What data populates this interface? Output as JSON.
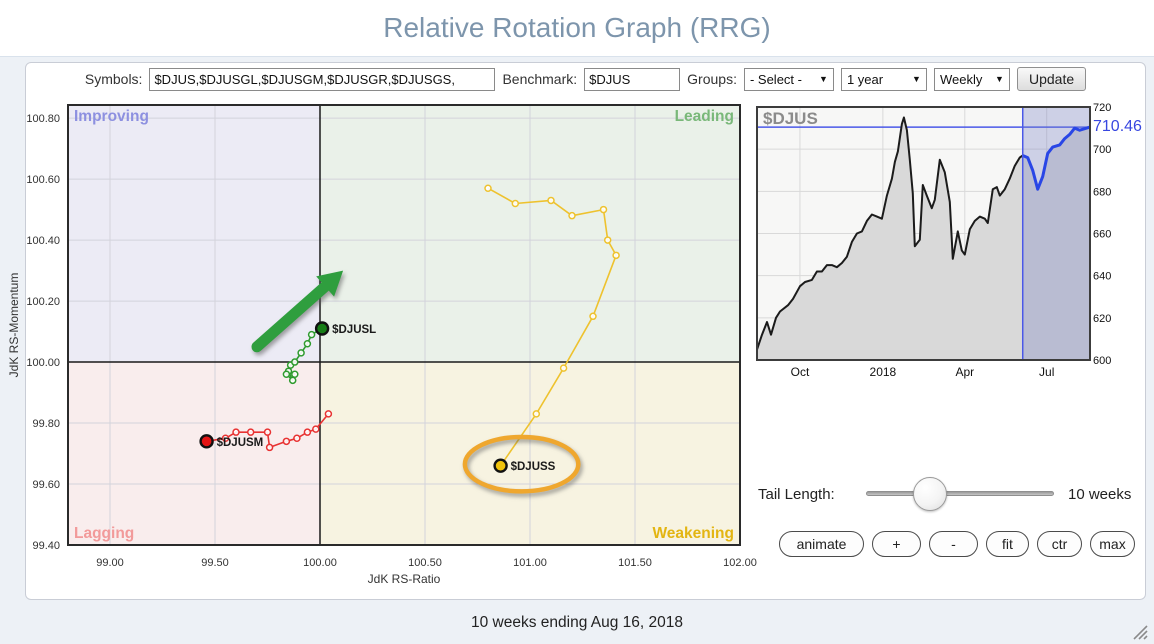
{
  "header": {
    "title": "Relative Rotation Graph (RRG)"
  },
  "toolbar": {
    "symbols_label": "Symbols:",
    "symbols_value": "$DJUS,$DJUSGL,$DJUSGM,$DJUSGR,$DJUSGS,",
    "benchmark_label": "Benchmark:",
    "benchmark_value": "$DJUS",
    "groups_label": "Groups:",
    "groups_value": "- Select -",
    "period_value": "1 year",
    "frequency_value": "Weekly",
    "update_label": "Update",
    "caret_glyph": "▼"
  },
  "controls": {
    "tail_length_label": "Tail Length:",
    "tail_length_value": "10 weeks",
    "buttons": [
      "animate",
      "+",
      "-",
      "fit",
      "ctr",
      "max"
    ]
  },
  "footer": {
    "caption": "10 weeks ending Aug 16, 2018"
  },
  "chart_data": [
    {
      "type": "scatter",
      "title": "RRG rotation chart",
      "xlabel": "JdK RS-Ratio",
      "ylabel": "JdK RS-Momentum",
      "xlim": [
        98.8,
        102.0
      ],
      "ylim": [
        99.4,
        100.843
      ],
      "center": [
        100.0,
        100.0
      ],
      "x_ticks": {
        "values": [
          99.0,
          99.5,
          100.0,
          100.5,
          101.0,
          101.5,
          102.0
        ],
        "labels": [
          "99.00",
          "99.50",
          "100.00",
          "100.50",
          "101.00",
          "101.50",
          "102.00"
        ]
      },
      "y_ticks": {
        "values": [
          100.8,
          100.6,
          100.4,
          100.2,
          100.0,
          99.8,
          99.6,
          99.4
        ],
        "labels": [
          "100.80",
          "100.60",
          "100.40",
          "100.20",
          "100.00",
          "99.80",
          "99.60",
          "99.40"
        ]
      },
      "quadrants": [
        {
          "name": "Improving",
          "pos": "tl",
          "bg": "#ecebf5",
          "label_color": "#8d90e0"
        },
        {
          "name": "Leading",
          "pos": "tr",
          "bg": "#eaf1e9",
          "label_color": "#79b879"
        },
        {
          "name": "Lagging",
          "pos": "bl",
          "bg": "#f9eded",
          "label_color": "#f29a9a"
        },
        {
          "name": "Weakening",
          "pos": "br",
          "bg": "#f7f3e1",
          "label_color": "#e3b512"
        }
      ],
      "series": [
        {
          "name": "$DJUSL",
          "line_color": "#2e9b2e",
          "marker_color": "#167d16",
          "points": [
            [
              99.88,
              99.96
            ],
            [
              99.85,
              99.97
            ],
            [
              99.87,
              99.94
            ],
            [
              99.84,
              99.96
            ],
            [
              99.86,
              99.99
            ],
            [
              99.88,
              100.0
            ],
            [
              99.91,
              100.03
            ],
            [
              99.94,
              100.06
            ],
            [
              99.96,
              100.09
            ],
            [
              100.01,
              100.11
            ]
          ]
        },
        {
          "name": "$DJUSM",
          "line_color": "#e83232",
          "marker_color": "#e41414",
          "points": [
            [
              100.04,
              99.83
            ],
            [
              99.98,
              99.78
            ],
            [
              99.94,
              99.77
            ],
            [
              99.89,
              99.75
            ],
            [
              99.84,
              99.74
            ],
            [
              99.76,
              99.72
            ],
            [
              99.75,
              99.77
            ],
            [
              99.67,
              99.77
            ],
            [
              99.6,
              99.77
            ],
            [
              99.55,
              99.75
            ],
            [
              99.46,
              99.74
            ]
          ]
        },
        {
          "name": "$DJUSS",
          "line_color": "#eec22e",
          "marker_color": "#efc20c",
          "points": [
            [
              100.8,
              100.57
            ],
            [
              100.93,
              100.52
            ],
            [
              101.1,
              100.53
            ],
            [
              101.2,
              100.48
            ],
            [
              101.35,
              100.5
            ],
            [
              101.37,
              100.4
            ],
            [
              101.41,
              100.35
            ],
            [
              101.3,
              100.15
            ],
            [
              101.16,
              99.98
            ],
            [
              101.03,
              99.83
            ],
            [
              100.86,
              99.66
            ]
          ]
        }
      ],
      "annotations": {
        "arrow": {
          "from": [
            99.7,
            100.05
          ],
          "to": [
            100.11,
            100.3
          ],
          "color": "#2f9e3e"
        },
        "ellipse": {
          "center": [
            100.96,
            99.665
          ],
          "rx": 0.27,
          "ry": 0.089,
          "color": "#efa72e"
        }
      }
    },
    {
      "type": "area",
      "title": "$DJUS",
      "last_value": 710.46,
      "last_value_label": "710.46",
      "ylim": [
        600,
        720
      ],
      "y_ticks": {
        "values": [
          720,
          700,
          680,
          660,
          640,
          620,
          600
        ],
        "labels": [
          "720",
          "700",
          "680",
          "660",
          "640",
          "620",
          "600"
        ]
      },
      "x_ticks": [
        {
          "f": 0.129,
          "label": "Oct"
        },
        {
          "f": 0.378,
          "label": "2018"
        },
        {
          "f": 0.624,
          "label": "Apr"
        },
        {
          "f": 0.87,
          "label": "Jul"
        }
      ],
      "highlight_start": 0.798,
      "points": [
        [
          0.0,
          605
        ],
        [
          0.015,
          612
        ],
        [
          0.03,
          618
        ],
        [
          0.042,
          612
        ],
        [
          0.057,
          620
        ],
        [
          0.069,
          623
        ],
        [
          0.093,
          626
        ],
        [
          0.108,
          629
        ],
        [
          0.129,
          635
        ],
        [
          0.144,
          637
        ],
        [
          0.165,
          638
        ],
        [
          0.18,
          642
        ],
        [
          0.195,
          642
        ],
        [
          0.21,
          645
        ],
        [
          0.225,
          645
        ],
        [
          0.24,
          644
        ],
        [
          0.255,
          646
        ],
        [
          0.27,
          649
        ],
        [
          0.285,
          656
        ],
        [
          0.3,
          660
        ],
        [
          0.315,
          661
        ],
        [
          0.33,
          666
        ],
        [
          0.345,
          669
        ],
        [
          0.36,
          668
        ],
        [
          0.375,
          667
        ],
        [
          0.39,
          678
        ],
        [
          0.405,
          686
        ],
        [
          0.414,
          694
        ],
        [
          0.423,
          699
        ],
        [
          0.435,
          712
        ],
        [
          0.441,
          715
        ],
        [
          0.45,
          709
        ],
        [
          0.459,
          695
        ],
        [
          0.468,
          679
        ],
        [
          0.474,
          654
        ],
        [
          0.489,
          657
        ],
        [
          0.498,
          683
        ],
        [
          0.51,
          678
        ],
        [
          0.525,
          672
        ],
        [
          0.534,
          676
        ],
        [
          0.549,
          695
        ],
        [
          0.564,
          689
        ],
        [
          0.579,
          675
        ],
        [
          0.588,
          648
        ],
        [
          0.603,
          661
        ],
        [
          0.615,
          652
        ],
        [
          0.624,
          650
        ],
        [
          0.639,
          662
        ],
        [
          0.654,
          666
        ],
        [
          0.669,
          668
        ],
        [
          0.684,
          667
        ],
        [
          0.693,
          665
        ],
        [
          0.708,
          681
        ],
        [
          0.72,
          682
        ],
        [
          0.729,
          678
        ],
        [
          0.744,
          681
        ],
        [
          0.759,
          686
        ],
        [
          0.774,
          692
        ],
        [
          0.789,
          696
        ],
        [
          0.798,
          697
        ],
        [
          0.813,
          696
        ],
        [
          0.828,
          690
        ],
        [
          0.843,
          681
        ],
        [
          0.858,
          687
        ],
        [
          0.873,
          698
        ],
        [
          0.888,
          701
        ],
        [
          0.909,
          702
        ],
        [
          0.924,
          705
        ],
        [
          0.939,
          707
        ],
        [
          0.954,
          710
        ],
        [
          0.969,
          709
        ],
        [
          1.0,
          710.46
        ]
      ]
    }
  ]
}
